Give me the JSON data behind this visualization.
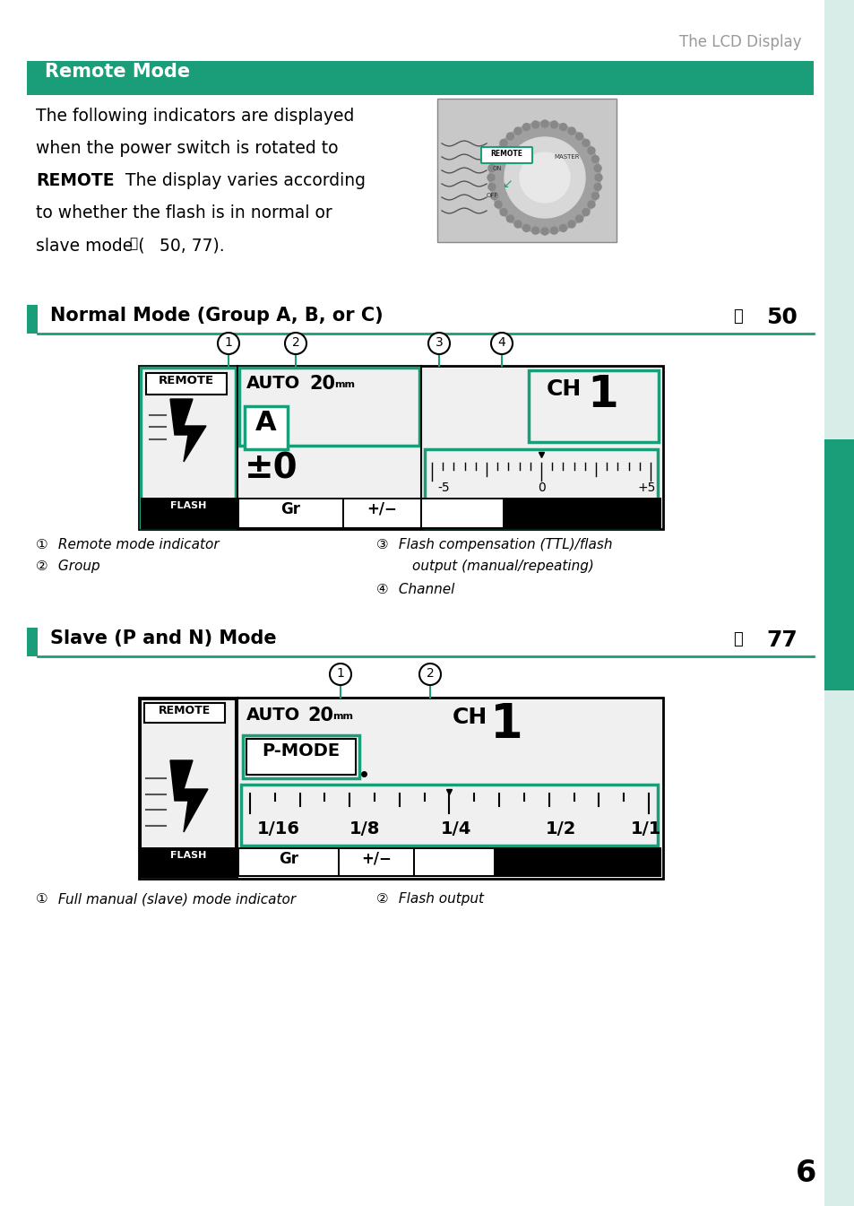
{
  "page_title": "The LCD Display",
  "section1_title": "Remote Mode",
  "section2_title": "Normal Mode (Group A, B, or C)",
  "section2_ref": "50",
  "section3_title": "Slave (P and N) Mode",
  "section3_ref": "77",
  "teal_color": "#1a9e7a",
  "black": "#000000",
  "white": "#ffffff",
  "gray_text": "#999999",
  "bg_color": "#ffffff",
  "sidebar_bg": "#d8ede8",
  "page_num": "6"
}
